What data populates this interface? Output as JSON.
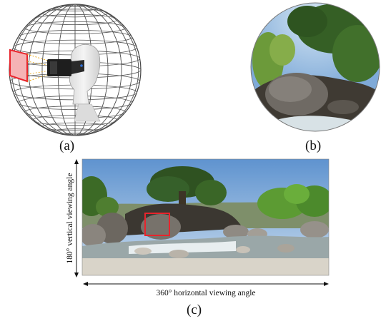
{
  "panels": {
    "a": {
      "caption": "(a)"
    },
    "b": {
      "caption": "(b)"
    },
    "c": {
      "caption": "(c)",
      "vertical_label": "180° vertical viewing angle",
      "horizontal_label": "360° horizontal viewing angle"
    }
  },
  "colors": {
    "viewport_highlight": "#e8242c",
    "sky": "#8fb4da",
    "foliage": "#3f7a2a",
    "rock": "#6a6660",
    "water": "#e6eef2"
  },
  "icons": [
    "sphere-wireframe-icon",
    "vr-headset-head-icon"
  ]
}
